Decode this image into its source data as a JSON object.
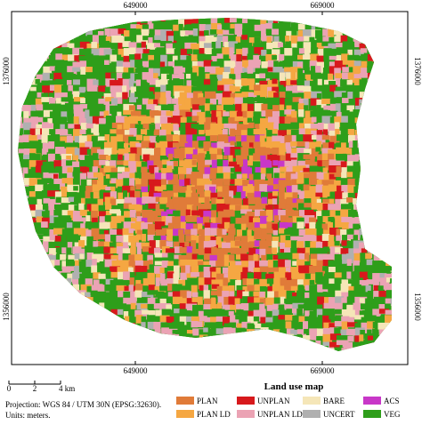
{
  "map": {
    "grid_labels": {
      "top": [
        "649000",
        "669000"
      ],
      "bottom": [
        "649000",
        "669000"
      ],
      "left": [
        "1376000",
        "1356000"
      ],
      "right": [
        "1376000",
        "1356000"
      ]
    },
    "scale_bar": {
      "labels": [
        "0",
        "2",
        "4 km"
      ]
    },
    "projection": [
      "Projection:  WGS 84 / UTM 30N (EPSG:32630).",
      "Units: meters."
    ],
    "legend": {
      "title": "Land use map",
      "items": [
        {
          "label": "PLAN",
          "color": "#e07b39"
        },
        {
          "label": "UNPLAN",
          "color": "#d7191c"
        },
        {
          "label": "BARE",
          "color": "#f5e6b8"
        },
        {
          "label": "ACS",
          "color": "#c837c8"
        },
        {
          "label": "PLAN LD",
          "color": "#f5a742"
        },
        {
          "label": "UNPLAN LD",
          "color": "#eba3b4"
        },
        {
          "label": "UNCERT",
          "color": "#b0b0b0"
        },
        {
          "label": "VEG",
          "color": "#2e9e1a"
        }
      ]
    }
  }
}
